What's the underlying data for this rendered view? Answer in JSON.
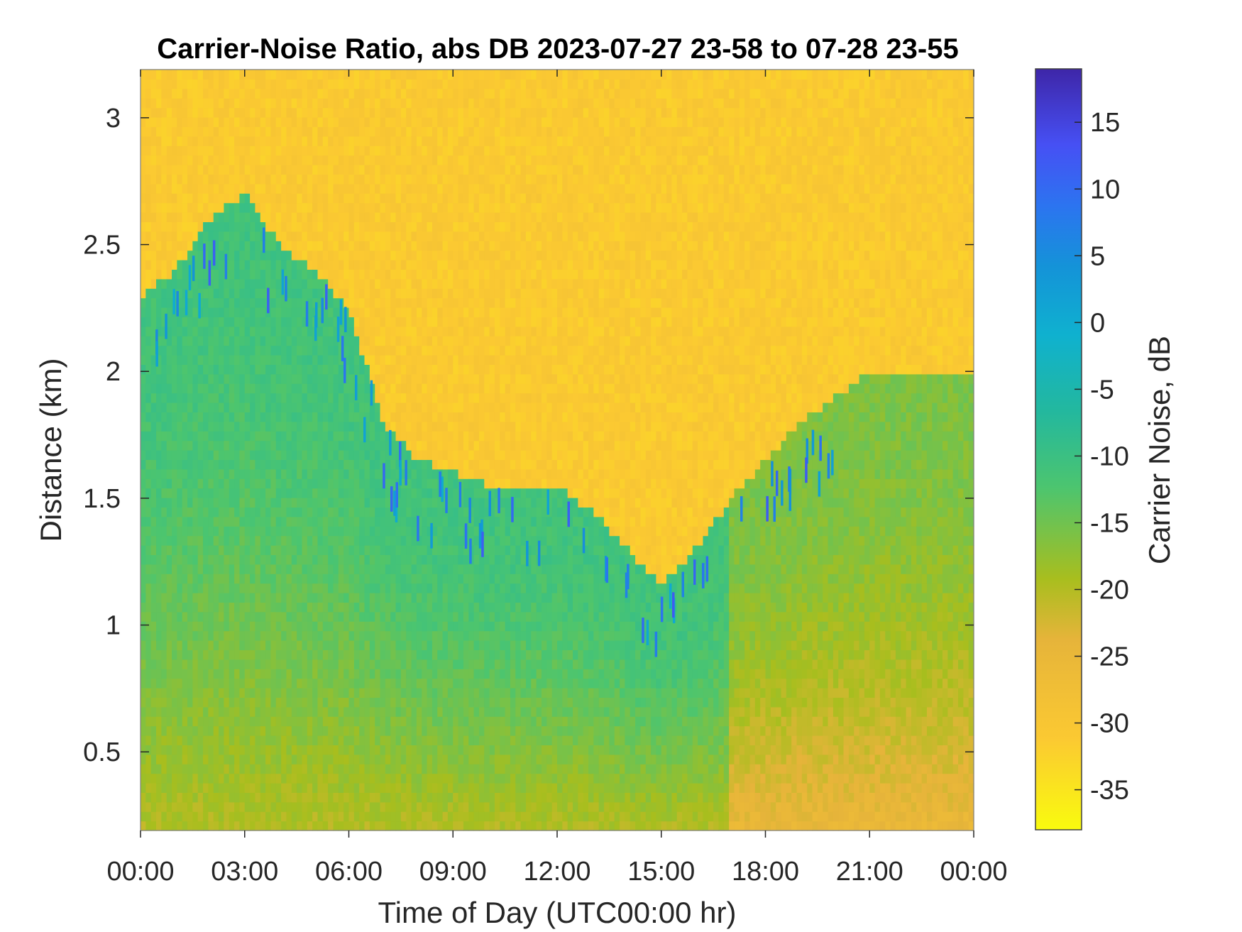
{
  "chart_data": {
    "type": "heatmap",
    "title": "Carrier-Noise Ratio, abs DB 2023-07-27 23-58 to 07-28 23-55",
    "xlabel": "Time of Day (UTC00:00 hr)",
    "ylabel": "Distance (km)",
    "xlim": [
      0,
      24
    ],
    "ylim": [
      0.19,
      3.19
    ],
    "x_ticks": [
      0,
      3,
      6,
      9,
      12,
      15,
      18,
      21,
      24
    ],
    "x_tick_labels": [
      "00:00",
      "03:00",
      "06:00",
      "09:00",
      "12:00",
      "15:00",
      "18:00",
      "21:00",
      "00:00"
    ],
    "y_ticks": [
      0.5,
      1,
      1.5,
      2,
      2.5,
      3
    ],
    "y_tick_labels": [
      "0.5",
      "1",
      "1.5",
      "2",
      "2.5",
      "3"
    ],
    "colorbar": {
      "label": "Carrier Noise, dB",
      "range": [
        -38,
        19
      ],
      "ticks": [
        15,
        10,
        5,
        0,
        -5,
        -10,
        -15,
        -20,
        -25,
        -30,
        -35
      ],
      "tick_labels": [
        "15",
        "10",
        "5",
        "0",
        "-5",
        "-10",
        "-15",
        "-20",
        "-25",
        "-30",
        "-35"
      ],
      "colormap": "parula-reversed"
    },
    "boundary_layer_top_km": {
      "hours": [
        0,
        1,
        2,
        3,
        4,
        5,
        6,
        7,
        8,
        9,
        10,
        11,
        12,
        13,
        14,
        15,
        16,
        17,
        18,
        19,
        20,
        21,
        22,
        23,
        24
      ],
      "heights": [
        2.3,
        2.4,
        2.6,
        2.7,
        2.5,
        2.4,
        2.25,
        1.8,
        1.65,
        1.6,
        1.55,
        1.55,
        1.55,
        1.45,
        1.3,
        1.15,
        1.3,
        1.5,
        1.65,
        1.8,
        1.9,
        2.0,
        2.0,
        2.0,
        2.0
      ]
    },
    "typical_cnr_db": {
      "clear_air_above": -31,
      "mixed_layer_low_level": -20,
      "mixed_layer_mid_level": -11,
      "cloud_base_spots": 12
    }
  }
}
